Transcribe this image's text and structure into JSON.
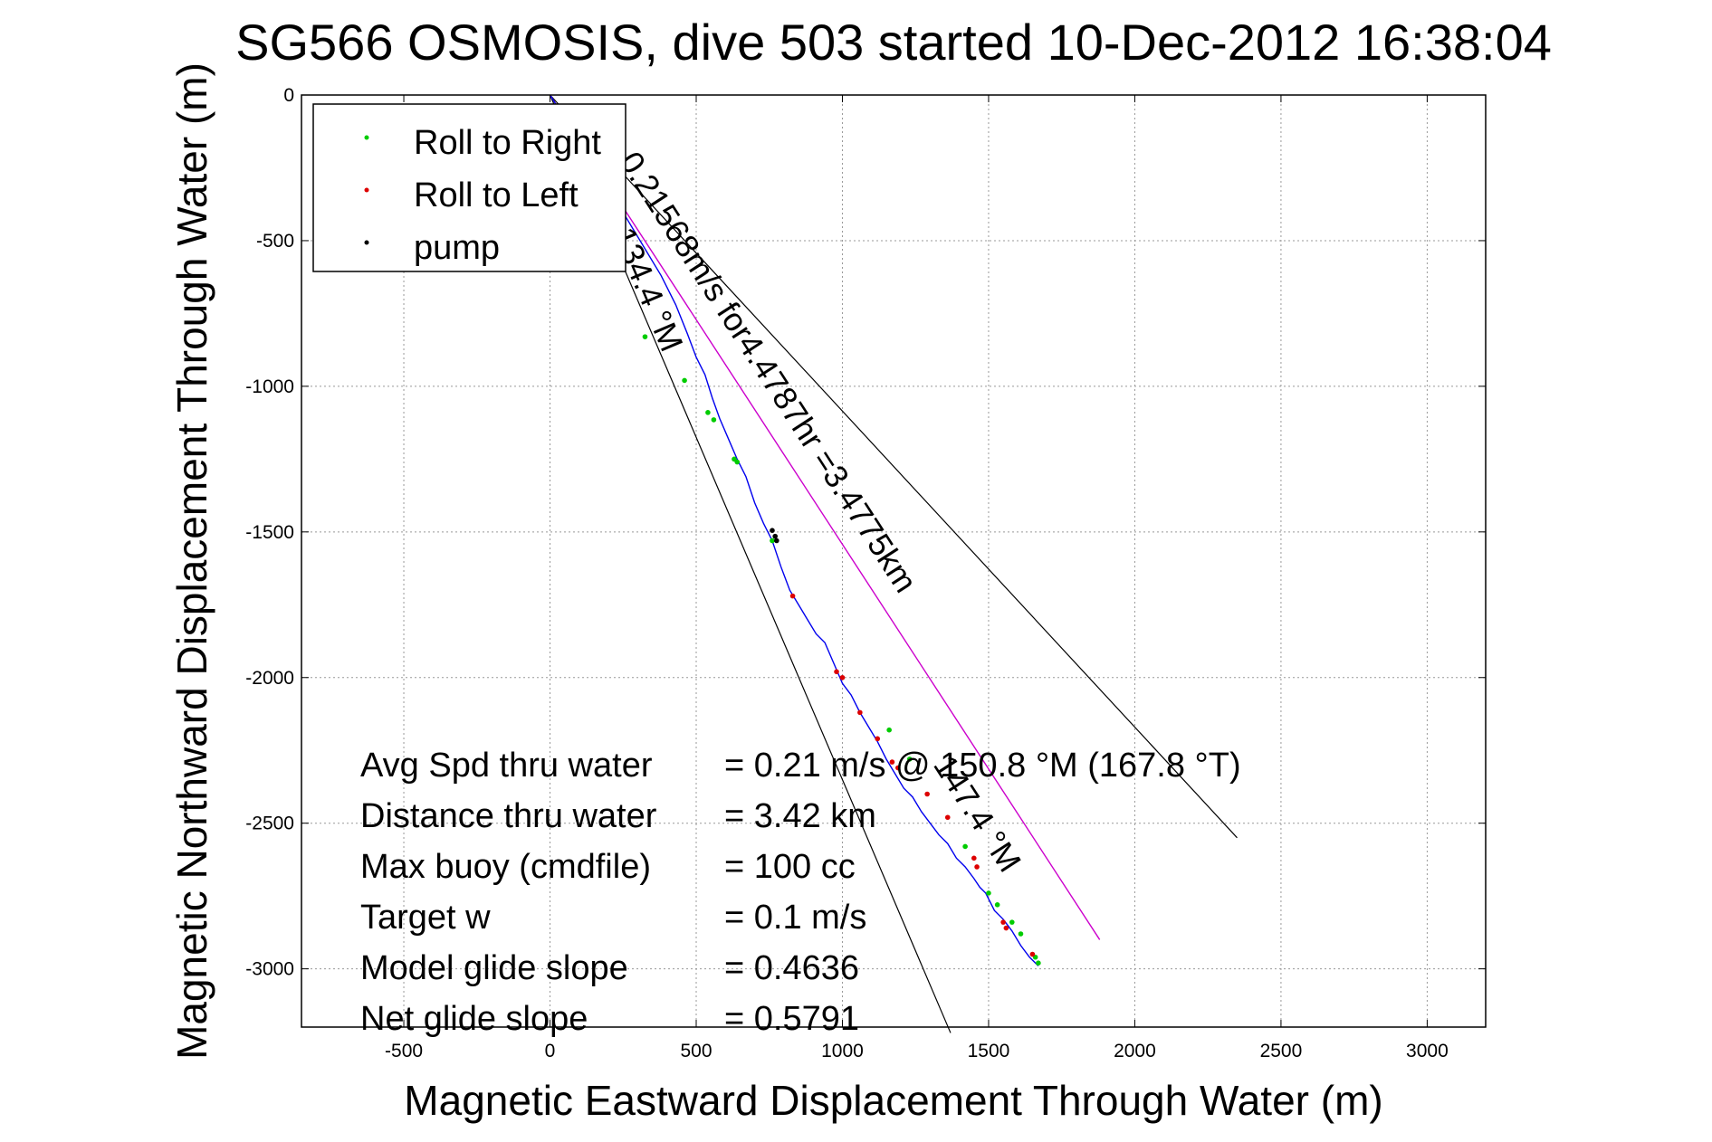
{
  "chart_data": {
    "type": "line",
    "title": "SG566 OSMOSIS, dive 503 started 10-Dec-2012 16:38:04",
    "xlabel": "Magnetic Eastward Displacement Through Water (m)",
    "ylabel": "Magnetic Northward Displacement Through Water (m)",
    "xlim": [
      -850,
      3200
    ],
    "ylim": [
      -3200,
      0
    ],
    "xticks": [
      -500,
      0,
      500,
      1000,
      1500,
      2000,
      2500,
      3000
    ],
    "yticks": [
      0,
      -500,
      -1000,
      -1500,
      -2000,
      -2500,
      -3000
    ],
    "grid": true,
    "legend": {
      "position": "top-left",
      "entries": [
        {
          "label": "Roll to Right",
          "color": "#00cc00"
        },
        {
          "label": "Roll to Left",
          "color": "#dd0000"
        },
        {
          "label": "pump",
          "color": "#000000"
        }
      ]
    },
    "track": {
      "color": "#0000ee",
      "x": [
        0,
        60,
        130,
        200,
        260,
        320,
        380,
        430,
        470,
        500,
        530,
        555,
        580,
        610,
        640,
        670,
        700,
        730,
        760,
        790,
        820,
        850,
        880,
        910,
        940,
        970,
        1000,
        1030,
        1060,
        1090,
        1120,
        1150,
        1180,
        1210,
        1240,
        1270,
        1300,
        1330,
        1360,
        1390,
        1420,
        1450,
        1470,
        1490,
        1520,
        1550,
        1580,
        1610,
        1640,
        1670
      ],
      "y": [
        0,
        -95,
        -210,
        -320,
        -420,
        -520,
        -620,
        -720,
        -820,
        -900,
        -960,
        -1040,
        -1110,
        -1180,
        -1250,
        -1310,
        -1400,
        -1470,
        -1530,
        -1620,
        -1700,
        -1750,
        -1800,
        -1850,
        -1880,
        -1950,
        -2020,
        -2060,
        -2120,
        -2170,
        -2220,
        -2280,
        -2330,
        -2380,
        -2410,
        -2460,
        -2500,
        -2540,
        -2570,
        -2620,
        -2650,
        -2690,
        -2720,
        -2740,
        -2800,
        -2830,
        -2870,
        -2920,
        -2960,
        -2990
      ]
    },
    "roll_right": {
      "x": [
        325,
        460,
        540,
        560,
        630,
        640,
        760,
        1160,
        1230,
        1420,
        1500,
        1530,
        1580,
        1610,
        1660,
        1670
      ],
      "y": [
        -830,
        -980,
        -1090,
        -1115,
        -1250,
        -1260,
        -1530,
        -2180,
        -2280,
        -2580,
        -2740,
        -2780,
        -2840,
        -2880,
        -2960,
        -2980
      ]
    },
    "roll_left": {
      "x": [
        830,
        980,
        1000,
        1060,
        1120,
        1170,
        1190,
        1290,
        1360,
        1450,
        1460,
        1550,
        1560,
        1650
      ],
      "y": [
        -1720,
        -1980,
        -2000,
        -2120,
        -2210,
        -2290,
        -2310,
        -2400,
        -2480,
        -2620,
        -2650,
        -2840,
        -2860,
        -2950
      ]
    },
    "pump": {
      "x": [
        760,
        770,
        775
      ],
      "y": [
        -1495,
        -1515,
        -1530
      ]
    },
    "heading_line": {
      "color": "#cc00cc",
      "x": [
        0,
        1880
      ],
      "y": [
        0,
        -2900
      ]
    },
    "cone_lines": {
      "color": "#000000",
      "lines": [
        {
          "x": [
            0,
            2350
          ],
          "y": [
            0,
            -2550
          ]
        },
        {
          "x": [
            0,
            1370
          ],
          "y": [
            0,
            -3220
          ]
        }
      ]
    },
    "annotations": [
      "0.21568m/s for4.4787hr =3.4775km",
      "147.4 °M",
      "134.4 °M"
    ],
    "stats": [
      {
        "label": "Avg Spd thru water",
        "value": "=  0.21 m/s @ 150.8 °M (167.8 °T)"
      },
      {
        "label": "Distance thru water",
        "value": "=  3.42 km"
      },
      {
        "label": "Max buoy (cmdfile)",
        "value": "= 100 cc"
      },
      {
        "label": "Target w",
        "value": "= 0.1 m/s"
      },
      {
        "label": "Model glide slope",
        "value": "= 0.4636"
      },
      {
        "label": "Net glide slope",
        "value": "= 0.5791"
      }
    ]
  }
}
